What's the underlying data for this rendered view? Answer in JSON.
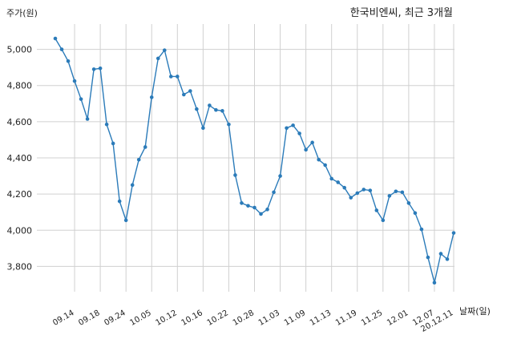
{
  "chart_data": {
    "type": "line",
    "title": "한국비엔씨, 최근 3개월",
    "ylabel": "주가(원)",
    "xlabel": "날짜(일)",
    "grid": true,
    "ylim": [
      3660,
      5140
    ],
    "y_ticks": [
      3800,
      4000,
      4200,
      4400,
      4600,
      4800,
      5000
    ],
    "y_tick_labels": [
      "3,800",
      "4,000",
      "4,200",
      "4,400",
      "4,600",
      "4,800",
      "5,000"
    ],
    "x_tick_labels": [
      "09.14",
      "09.18",
      "09.24",
      "10.05",
      "10.12",
      "10.16",
      "10.22",
      "10.28",
      "11.03",
      "11.09",
      "11.13",
      "11.19",
      "11.25",
      "12.01",
      "12.07",
      "20.12.11"
    ],
    "x_tick_index": [
      3,
      7,
      11,
      15,
      19,
      23,
      27,
      31,
      35,
      39,
      43,
      47,
      51,
      55,
      59,
      62
    ],
    "series": [
      {
        "name": "",
        "color": "#2b7bb9",
        "values": [
          5060,
          5000,
          4935,
          4825,
          4725,
          4615,
          4890,
          4895,
          4585,
          4480,
          4160,
          4055,
          4250,
          4390,
          4460,
          4735,
          4950,
          4995,
          4850,
          4850,
          4750,
          4770,
          4670,
          4565,
          4690,
          4665,
          4660,
          4585,
          4305,
          4150,
          4135,
          4125,
          4090,
          4115,
          4210,
          4300,
          4565,
          4580,
          4535,
          4445,
          4485,
          4390,
          4360,
          4285,
          4265,
          4235,
          4180,
          4205,
          4225,
          4220,
          4110,
          4055,
          4190,
          4215,
          4210,
          4150,
          4095,
          4005,
          3850,
          3710,
          3870,
          3840,
          3985
        ]
      }
    ]
  }
}
